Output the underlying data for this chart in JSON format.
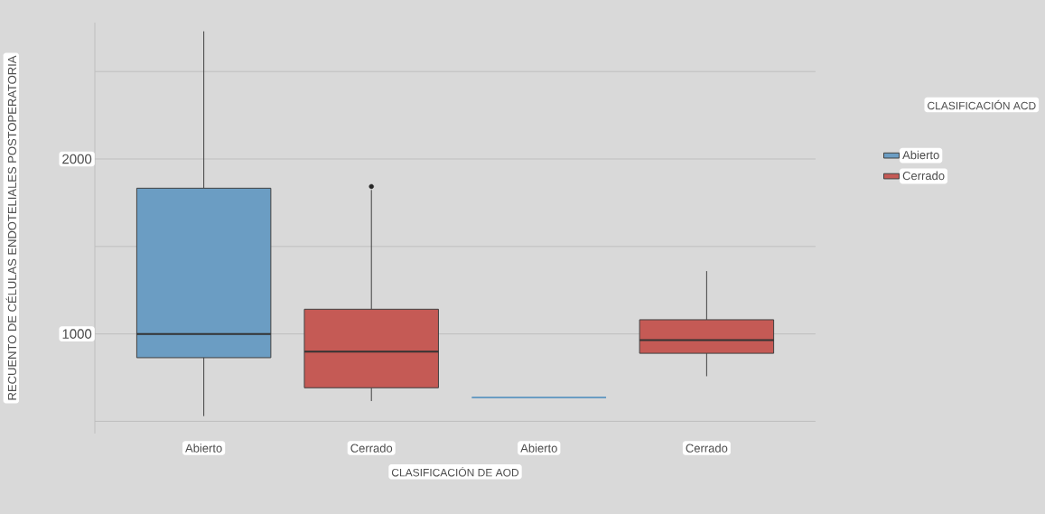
{
  "chart_data": {
    "type": "box",
    "xlabel": "CLASIFICACIÓN DE AOD",
    "ylabel": "RECUENTO DE CÉLULAS ENDOTELIALES POSTOPERATORIA",
    "legend_title": "CLASIFICACIÓN ACD",
    "categories": [
      "Abierto",
      "Cerrado",
      "Abierto",
      "Cerrado"
    ],
    "ylim": [
      430,
      2780
    ],
    "yticks": [
      {
        "value": 500,
        "label": null
      },
      1000,
      {
        "value": 1500,
        "label": null
      },
      2000,
      {
        "value": 2500,
        "label": null
      }
    ],
    "grid": "y",
    "legend": "right",
    "series": [
      {
        "name": "Abierto",
        "color": "#6b9dc3",
        "boxes": [
          {
            "low": 530,
            "q1": 864,
            "median": 1000,
            "q3": 1833,
            "high": 2730
          },
          null,
          {
            "low": 636,
            "q1": 636,
            "median": 636,
            "q3": 636,
            "high": 636
          },
          null
        ]
      },
      {
        "name": "Cerrado",
        "color": "#c55a55",
        "boxes": [
          null,
          {
            "low": 616,
            "q1": 692,
            "median": 899,
            "q3": 1141,
            "high": 1823,
            "outliers": [
              1843
            ]
          },
          null,
          {
            "low": 758,
            "q1": 889,
            "median": 965,
            "q3": 1081,
            "high": 1359
          }
        ]
      }
    ]
  }
}
